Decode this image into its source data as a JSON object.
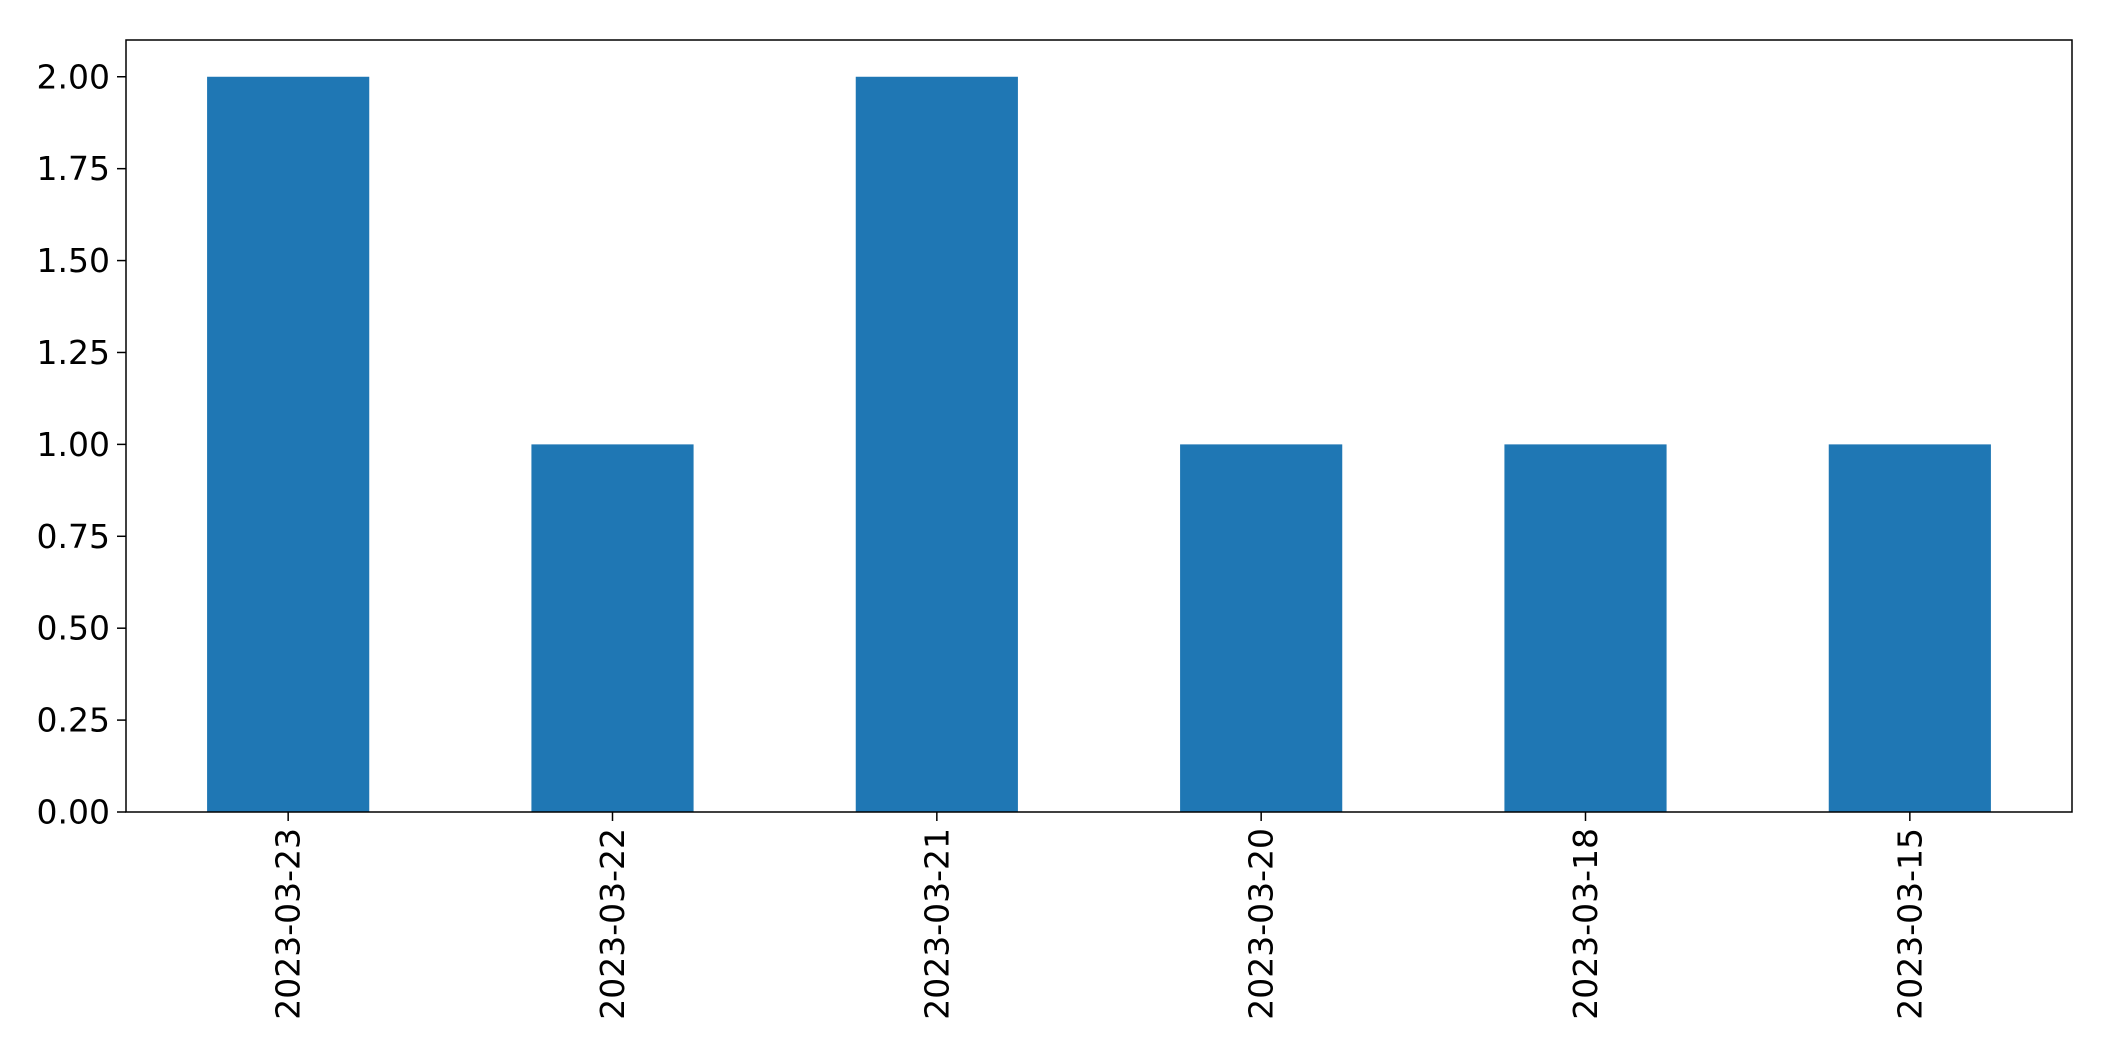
{
  "chart_data": {
    "type": "bar",
    "title": "",
    "xlabel": "",
    "ylabel": "",
    "categories": [
      "2023-03-23",
      "2023-03-22",
      "2023-03-21",
      "2023-03-20",
      "2023-03-18",
      "2023-03-15"
    ],
    "values": [
      2,
      1,
      2,
      1,
      1,
      1
    ],
    "ylim": [
      0,
      2.1
    ],
    "yticks": [
      "0.00",
      "0.25",
      "0.50",
      "0.75",
      "1.00",
      "1.25",
      "1.50",
      "1.75",
      "2.00"
    ],
    "grid": false,
    "bar_color": "#1f77b4",
    "x_tick_rotation": "vertical"
  }
}
